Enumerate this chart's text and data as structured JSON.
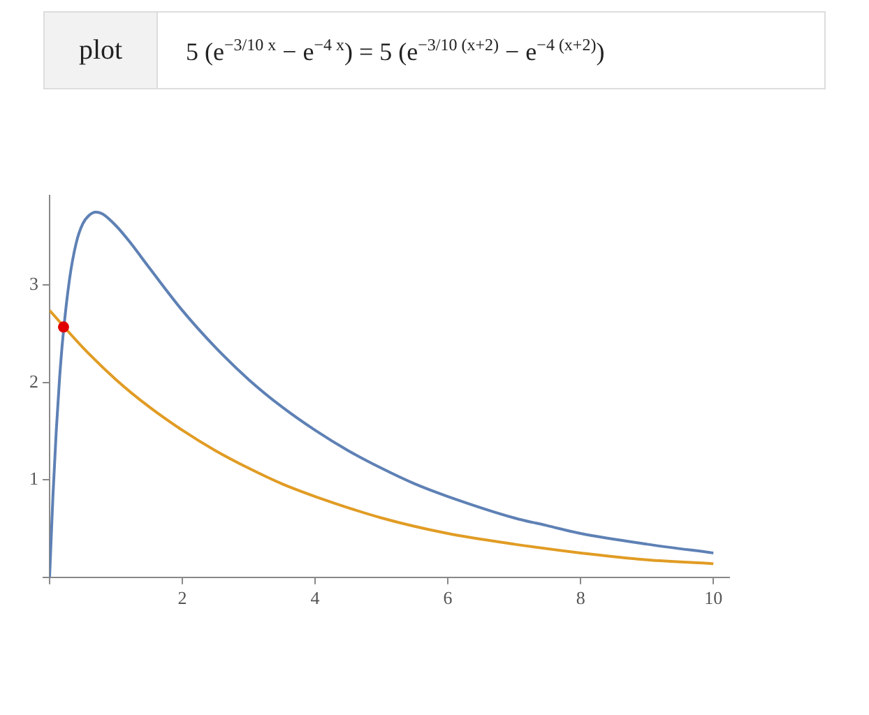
{
  "chart_data": {
    "type": "line",
    "title": "plot",
    "subtitle": "5 (e$^{−3/10 x}$ − e$^{−4 x}$) = 5 (e$^{−3/10 (x+2)}$ − e$^{−4 (x+2)}$)",
    "xlim": [
      0,
      10.24
    ],
    "ylim": [
      0,
      3.92
    ],
    "xticks": [
      {
        "value": 0,
        "label": null
      },
      2,
      4,
      6,
      8,
      10
    ],
    "yticks": [
      {
        "value": 0,
        "label": null
      },
      1,
      2,
      3
    ],
    "grid": false,
    "legend": false,
    "line_style": "solid",
    "series": [
      {
        "color": "#5e81b5",
        "marker": "none",
        "x": [
          0,
          0.05,
          0.1,
          0.15,
          0.2,
          0.3,
          0.4,
          0.5,
          0.6,
          0.7,
          0.8,
          1,
          1.2,
          1.5,
          2,
          2.5,
          3,
          3.5,
          4,
          4.5,
          5,
          5.5,
          6,
          7,
          7.5,
          8,
          9,
          10
        ],
        "values": [
          0,
          0.83,
          1.5,
          2.04,
          2.46,
          3.06,
          3.43,
          3.63,
          3.72,
          3.75,
          3.73,
          3.61,
          3.45,
          3.18,
          2.74,
          2.36,
          2.03,
          1.75,
          1.51,
          1.3,
          1.12,
          0.96,
          0.83,
          0.61,
          0.53,
          0.45,
          0.34,
          0.25
        ]
      },
      {
        "color": "#e19c24",
        "marker": "none",
        "x": [
          0,
          0.5,
          1,
          1.5,
          2,
          2.5,
          3,
          3.5,
          4,
          5,
          6,
          7,
          8,
          9,
          10
        ],
        "values": [
          2.74,
          2.36,
          2.03,
          1.75,
          1.51,
          1.3,
          1.12,
          0.96,
          0.83,
          0.61,
          0.45,
          0.34,
          0.25,
          0.18,
          0.14
        ]
      },
      {
        "type": "scatter",
        "color": "#e00000",
        "marker": "circle",
        "x": [
          0.21
        ],
        "values": [
          2.57
        ]
      }
    ]
  }
}
